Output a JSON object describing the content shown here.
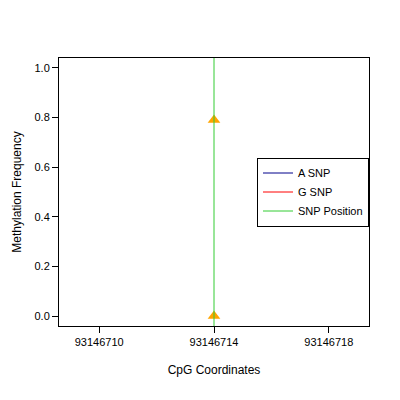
{
  "chart_data": {
    "type": "scatter",
    "x_label": "CpG Coordinates",
    "y_label": "Methylation Frequency",
    "series": [
      {
        "x": [
          93146714,
          93146714
        ],
        "values": [
          0.79,
          0.0
        ],
        "color": "#FFA500",
        "marker": "triangle"
      },
      {
        "name": "A SNP",
        "color": "#00008B",
        "x": [],
        "values": []
      },
      {
        "name": "G SNP",
        "color": "#FF0000",
        "x": [],
        "values": []
      },
      {
        "name": "SNP Position",
        "color": "#33CC33",
        "type": "vline",
        "x": [
          93146714
        ]
      }
    ],
    "xlim": [
      93146708.6,
      93146719.4
    ],
    "ylim": [
      -0.04,
      1.04
    ],
    "xticks": [
      93146710,
      93146714,
      93146718
    ],
    "yticks": [
      {
        "value": 0,
        "label": "0.0"
      },
      {
        "value": 0.2,
        "label": "0.2"
      },
      {
        "value": 0.4,
        "label": "0.4"
      },
      {
        "value": 0.6,
        "label": "0.6"
      },
      {
        "value": 0.8,
        "label": "0.8"
      },
      {
        "value": 1.0,
        "label": "1.0"
      }
    ],
    "grid": false,
    "legend": "right"
  }
}
